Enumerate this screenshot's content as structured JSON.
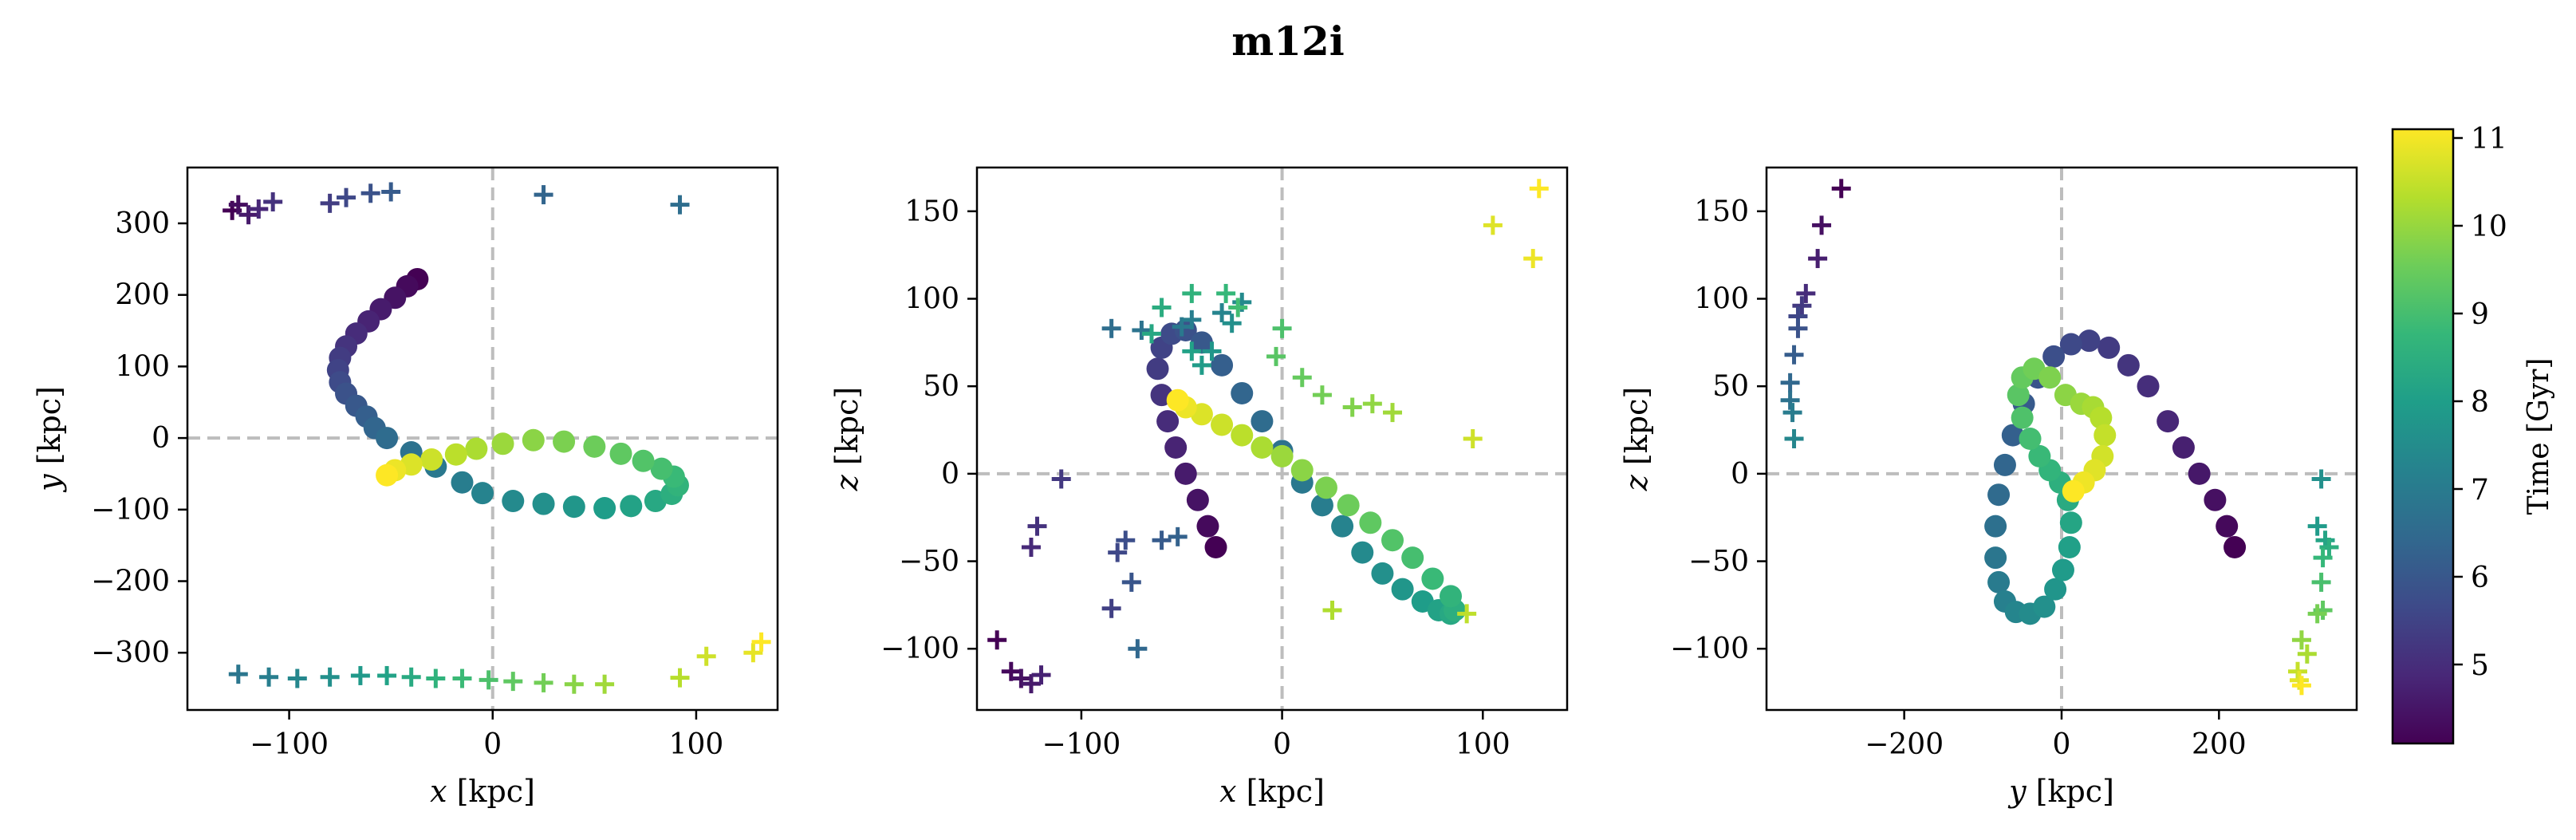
{
  "title": "m12i",
  "colorbar": {
    "label": "Time [Gyr]",
    "range": [
      4.1,
      11.1
    ],
    "ticks": [
      5,
      6,
      7,
      8,
      9,
      10,
      11
    ]
  },
  "chart_data": [
    {
      "type": "scatter",
      "xlabel_var": "x",
      "xlabel_unit": " [kpc]",
      "ylabel_var": "y",
      "ylabel_unit": " [kpc]",
      "xlim": [
        -150,
        140
      ],
      "ylim": [
        -380,
        378
      ],
      "xticks": [
        -100,
        0,
        100
      ],
      "yticks": [
        -300,
        -200,
        -100,
        0,
        100,
        200,
        300
      ],
      "zero_lines": true,
      "series": [
        {
          "marker": "circle",
          "points": [
            [
              -37,
              222
            ],
            [
              -42,
              212
            ],
            [
              -48,
              196
            ],
            [
              -55,
              180
            ],
            [
              -61,
              163
            ],
            [
              -67,
              146
            ],
            [
              -72,
              128
            ],
            [
              -75,
              112
            ],
            [
              -76,
              95
            ],
            [
              -75,
              78
            ],
            [
              -72,
              62
            ],
            [
              -67,
              45
            ],
            [
              -62,
              30
            ],
            [
              -58,
              14
            ],
            [
              -52,
              0
            ],
            [
              -40,
              -20
            ],
            [
              -28,
              -40
            ],
            [
              -15,
              -62
            ],
            [
              -5,
              -77
            ],
            [
              10,
              -88
            ],
            [
              25,
              -92
            ],
            [
              40,
              -96
            ],
            [
              55,
              -98
            ],
            [
              68,
              -95
            ],
            [
              80,
              -88
            ],
            [
              88,
              -78
            ],
            [
              91,
              -66
            ],
            [
              89,
              -54
            ],
            [
              83,
              -43
            ],
            [
              74,
              -32
            ],
            [
              63,
              -22
            ],
            [
              50,
              -12
            ],
            [
              35,
              -5
            ],
            [
              20,
              -3
            ],
            [
              5,
              -8
            ],
            [
              -8,
              -15
            ],
            [
              -18,
              -23
            ],
            [
              -30,
              -30
            ],
            [
              -40,
              -37
            ],
            [
              -48,
              -45
            ],
            [
              -52,
              -52
            ]
          ]
        },
        {
          "marker": "plus",
          "points": [
            [
              -128,
              318
            ],
            [
              -125,
              326
            ],
            [
              -120,
              312
            ],
            [
              -115,
              320
            ],
            [
              -108,
              330
            ],
            [
              -80,
              328
            ],
            [
              -72,
              336
            ],
            [
              -60,
              342
            ],
            [
              -50,
              344
            ],
            [
              25,
              340
            ],
            [
              92,
              326
            ],
            [
              -125,
              -330
            ],
            [
              -110,
              -334
            ],
            [
              -96,
              -336
            ],
            [
              -80,
              -334
            ],
            [
              -65,
              -332
            ],
            [
              -52,
              -332
            ],
            [
              -40,
              -334
            ],
            [
              -28,
              -336
            ],
            [
              -15,
              -336
            ],
            [
              -2,
              -338
            ],
            [
              10,
              -340
            ],
            [
              25,
              -342
            ],
            [
              40,
              -344
            ],
            [
              55,
              -344
            ],
            [
              92,
              -335
            ],
            [
              105,
              -305
            ],
            [
              128,
              -300
            ],
            [
              132,
              -285
            ]
          ]
        }
      ]
    },
    {
      "type": "scatter",
      "xlabel_var": "x",
      "xlabel_unit": " [kpc]",
      "ylabel_var": "z",
      "ylabel_unit": " [kpc]",
      "xlim": [
        -152,
        142
      ],
      "ylim": [
        -135,
        175
      ],
      "xticks": [
        -100,
        0,
        100
      ],
      "yticks": [
        -100,
        -50,
        0,
        50,
        100,
        150
      ],
      "zero_lines": true,
      "series": [
        {
          "marker": "circle",
          "points": [
            [
              -33,
              -42
            ],
            [
              -37,
              -30
            ],
            [
              -42,
              -15
            ],
            [
              -48,
              0
            ],
            [
              -53,
              15
            ],
            [
              -57,
              30
            ],
            [
              -60,
              45
            ],
            [
              -62,
              60
            ],
            [
              -60,
              72
            ],
            [
              -55,
              80
            ],
            [
              -48,
              82
            ],
            [
              -40,
              75
            ],
            [
              -30,
              62
            ],
            [
              -20,
              46
            ],
            [
              -10,
              30
            ],
            [
              0,
              13
            ],
            [
              10,
              -5
            ],
            [
              20,
              -18
            ],
            [
              30,
              -30
            ],
            [
              40,
              -45
            ],
            [
              50,
              -57
            ],
            [
              60,
              -66
            ],
            [
              70,
              -73
            ],
            [
              78,
              -78
            ],
            [
              84,
              -80
            ],
            [
              86,
              -78
            ],
            [
              84,
              -70
            ],
            [
              75,
              -60
            ],
            [
              65,
              -48
            ],
            [
              55,
              -38
            ],
            [
              44,
              -28
            ],
            [
              33,
              -18
            ],
            [
              22,
              -8
            ],
            [
              10,
              2
            ],
            [
              0,
              10
            ],
            [
              -10,
              15
            ],
            [
              -20,
              22
            ],
            [
              -30,
              28
            ],
            [
              -40,
              34
            ],
            [
              -48,
              38
            ],
            [
              -52,
              42
            ]
          ]
        },
        {
          "marker": "plus",
          "points": [
            [
              -142,
              -95
            ],
            [
              -135,
              -113
            ],
            [
              -130,
              -117
            ],
            [
              -125,
              -120
            ],
            [
              -120,
              -115
            ],
            [
              -125,
              -42
            ],
            [
              -122,
              -30
            ],
            [
              -110,
              -3
            ],
            [
              -85,
              -77
            ],
            [
              -82,
              -45
            ],
            [
              -78,
              -38
            ],
            [
              -75,
              -62
            ],
            [
              -60,
              -38
            ],
            [
              -52,
              -36
            ],
            [
              -72,
              -100
            ],
            [
              -85,
              83
            ],
            [
              -70,
              82
            ],
            [
              -50,
              84
            ],
            [
              -45,
              88
            ],
            [
              -30,
              92
            ],
            [
              -20,
              98
            ],
            [
              -25,
              86
            ],
            [
              -35,
              70
            ],
            [
              -40,
              62
            ],
            [
              -45,
              70
            ],
            [
              -65,
              80
            ],
            [
              -60,
              95
            ],
            [
              -45,
              103
            ],
            [
              -28,
              103
            ],
            [
              -22,
              95
            ],
            [
              0,
              83
            ],
            [
              -3,
              67
            ],
            [
              10,
              55
            ],
            [
              20,
              45
            ],
            [
              35,
              38
            ],
            [
              45,
              40
            ],
            [
              55,
              35
            ],
            [
              25,
              -78
            ],
            [
              92,
              -80
            ],
            [
              95,
              20
            ],
            [
              105,
              142
            ],
            [
              125,
              123
            ],
            [
              128,
              163
            ]
          ]
        }
      ]
    },
    {
      "type": "scatter",
      "xlabel_var": "y",
      "xlabel_unit": " [kpc]",
      "ylabel_var": "z",
      "ylabel_unit": " [kpc]",
      "xlim": [
        -375,
        375
      ],
      "ylim": [
        -135,
        175
      ],
      "xticks": [
        -200,
        0,
        200
      ],
      "yticks": [
        -100,
        -50,
        0,
        50,
        100,
        150
      ],
      "zero_lines": true,
      "series": [
        {
          "marker": "circle",
          "points": [
            [
              220,
              -42
            ],
            [
              210,
              -30
            ],
            [
              195,
              -15
            ],
            [
              175,
              0
            ],
            [
              155,
              15
            ],
            [
              135,
              30
            ],
            [
              110,
              50
            ],
            [
              85,
              62
            ],
            [
              60,
              72
            ],
            [
              35,
              76
            ],
            [
              12,
              74
            ],
            [
              -10,
              67
            ],
            [
              -30,
              55
            ],
            [
              -48,
              40
            ],
            [
              -62,
              22
            ],
            [
              -72,
              5
            ],
            [
              -80,
              -12
            ],
            [
              -84,
              -30
            ],
            [
              -84,
              -48
            ],
            [
              -80,
              -62
            ],
            [
              -72,
              -73
            ],
            [
              -58,
              -79
            ],
            [
              -40,
              -80
            ],
            [
              -22,
              -76
            ],
            [
              -8,
              -66
            ],
            [
              2,
              -55
            ],
            [
              10,
              -42
            ],
            [
              12,
              -28
            ],
            [
              8,
              -15
            ],
            [
              -2,
              -5
            ],
            [
              -15,
              2
            ],
            [
              -28,
              10
            ],
            [
              -40,
              20
            ],
            [
              -50,
              32
            ],
            [
              -55,
              45
            ],
            [
              -50,
              55
            ],
            [
              -35,
              60
            ],
            [
              -15,
              55
            ],
            [
              5,
              45
            ],
            [
              25,
              40
            ],
            [
              40,
              38
            ],
            [
              50,
              32
            ],
            [
              55,
              22
            ],
            [
              52,
              10
            ],
            [
              42,
              2
            ],
            [
              28,
              -5
            ],
            [
              15,
              -10
            ]
          ]
        },
        {
          "marker": "plus",
          "points": [
            [
              -280,
              163
            ],
            [
              -305,
              142
            ],
            [
              -310,
              123
            ],
            [
              -325,
              103
            ],
            [
              -330,
              96
            ],
            [
              -335,
              90
            ],
            [
              -335,
              83
            ],
            [
              -340,
              68
            ],
            [
              -345,
              52
            ],
            [
              -345,
              42
            ],
            [
              -342,
              35
            ],
            [
              -340,
              20
            ],
            [
              330,
              -3
            ],
            [
              325,
              -30
            ],
            [
              335,
              -38
            ],
            [
              340,
              -42
            ],
            [
              332,
              -48
            ],
            [
              330,
              -62
            ],
            [
              332,
              -78
            ],
            [
              325,
              -80
            ],
            [
              305,
              -95
            ],
            [
              312,
              -103
            ],
            [
              300,
              -113
            ],
            [
              302,
              -118
            ],
            [
              305,
              -121
            ]
          ]
        }
      ]
    }
  ]
}
